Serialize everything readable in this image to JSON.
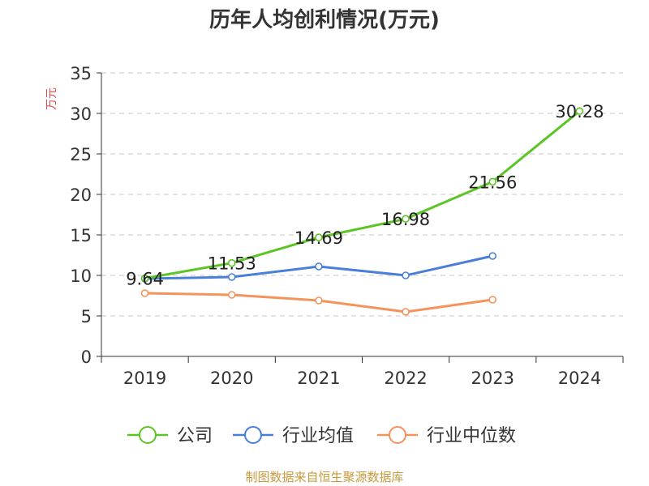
{
  "chart_data": {
    "type": "line",
    "title": "历年人均创利情况(万元)",
    "ylabel": "万元",
    "xlabel": "",
    "categories": [
      "2019",
      "2020",
      "2021",
      "2022",
      "2023",
      "2024"
    ],
    "ylim": [
      0,
      35
    ],
    "yticks": [
      0,
      5,
      10,
      15,
      20,
      25,
      30,
      35
    ],
    "grid": true,
    "legend_position": "bottom",
    "series": [
      {
        "name": "公司",
        "color": "#5cc424",
        "values": [
          9.64,
          11.53,
          14.69,
          16.98,
          21.56,
          30.28
        ],
        "labels": [
          "9.64",
          "11.53",
          "14.69",
          "16.98",
          "21.56",
          "30.28"
        ]
      },
      {
        "name": "行业均值",
        "color": "#4a7fd9",
        "values": [
          9.6,
          9.8,
          11.1,
          10.0,
          12.4,
          null
        ]
      },
      {
        "name": "行业中位数",
        "color": "#f5935d",
        "values": [
          7.8,
          7.6,
          6.9,
          5.5,
          7.0,
          null
        ]
      }
    ]
  },
  "footer": "制图数据来自恒生聚源数据库"
}
